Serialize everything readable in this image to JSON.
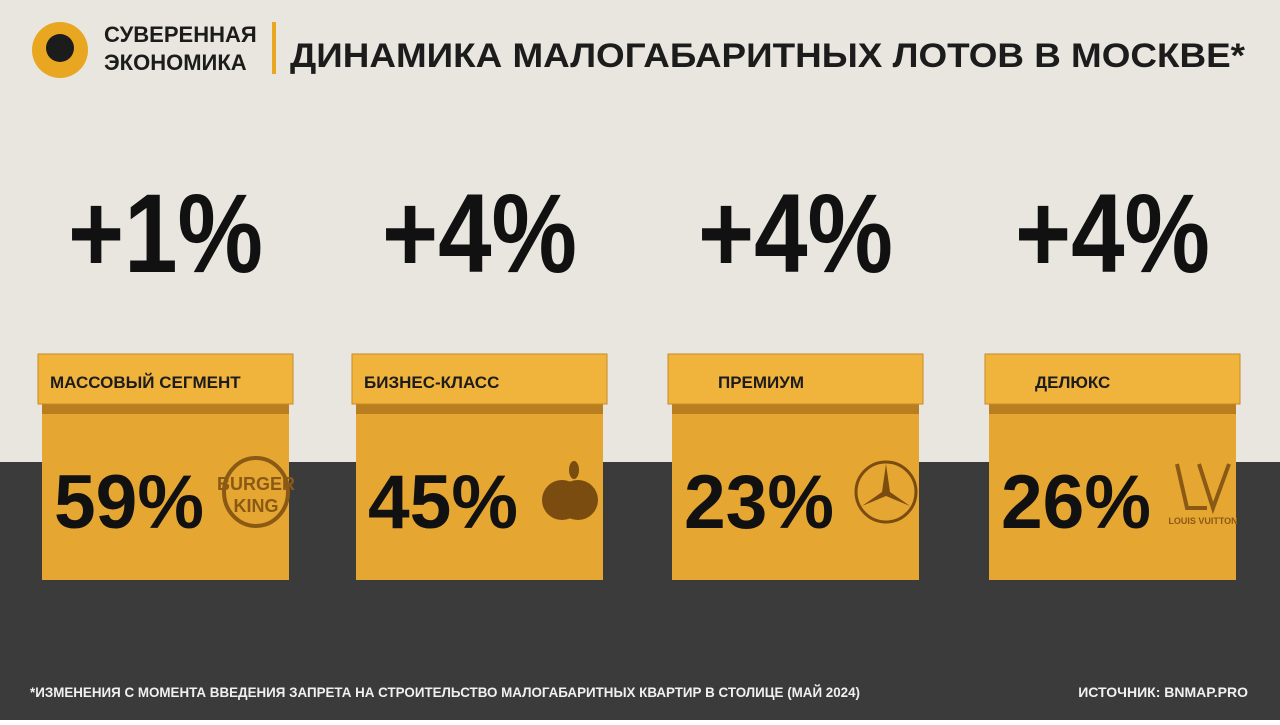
{
  "header": {
    "brand": [
      "СУВЕРЕННАЯ",
      "ЭКОНОМИКА"
    ],
    "title": "ДИНАМИКА МАЛОГАБАРИТНЫХ ЛОТОВ В МОСКВЕ*"
  },
  "segments": [
    {
      "change": "+1%",
      "label": "МАССОВЫЙ СЕГМЕНТ",
      "share": "59%",
      "logo": [
        "BURGER",
        "KING"
      ]
    },
    {
      "change": "+4%",
      "label": "БИЗНЕС-КЛАСС",
      "share": "45%",
      "logo": []
    },
    {
      "change": "+4%",
      "label": "ПРЕМИУМ",
      "share": "23%",
      "logo": []
    },
    {
      "change": "+4%",
      "label": "ДЕЛЮКС",
      "share": "26%",
      "logo": [
        "LOUIS VUITTON"
      ]
    }
  ],
  "footer": {
    "note": "*ИЗМЕНЕНИЯ С МОМЕНТА ВВЕДЕНИЯ ЗАПРЕТА НА СТРОИТЕЛЬСТВО МАЛОГАБАРИТНЫХ КВАРТИР В СТОЛИЦЕ (МАЙ 2024)",
    "source": "ИСТОЧНИК: BNMAP.PRO"
  }
}
